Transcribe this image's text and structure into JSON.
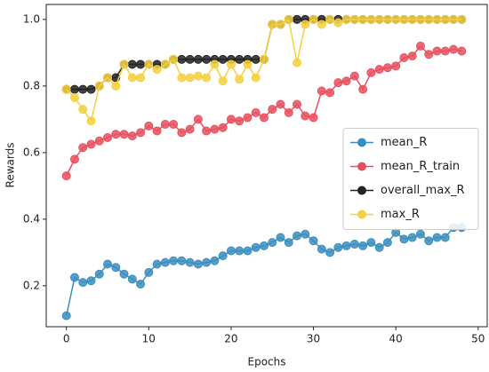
{
  "chart_data": {
    "type": "line",
    "x_label": "Epochs",
    "y_label": "Rewards",
    "x": [
      0,
      1,
      2,
      3,
      4,
      5,
      6,
      7,
      8,
      9,
      10,
      11,
      12,
      13,
      14,
      15,
      16,
      17,
      18,
      19,
      20,
      21,
      22,
      23,
      24,
      25,
      26,
      27,
      28,
      29,
      30,
      31,
      32,
      33,
      34,
      35,
      36,
      37,
      38,
      39,
      40,
      41,
      42,
      43,
      44,
      45,
      46,
      47,
      48
    ],
    "series": [
      {
        "name": "mean_R",
        "color": "#3a8ebf",
        "values": [
          0.11,
          0.225,
          0.21,
          0.215,
          0.235,
          0.265,
          0.255,
          0.235,
          0.22,
          0.205,
          0.24,
          0.265,
          0.27,
          0.275,
          0.275,
          0.27,
          0.265,
          0.27,
          0.275,
          0.29,
          0.305,
          0.305,
          0.305,
          0.315,
          0.32,
          0.33,
          0.345,
          0.33,
          0.35,
          0.355,
          0.335,
          0.31,
          0.3,
          0.315,
          0.32,
          0.325,
          0.32,
          0.33,
          0.315,
          0.33,
          0.36,
          0.34,
          0.345,
          0.355,
          0.335,
          0.345,
          0.345,
          0.375,
          0.375
        ]
      },
      {
        "name": "mean_R_train",
        "color": "#e8505f",
        "values": [
          0.53,
          0.58,
          0.615,
          0.625,
          0.635,
          0.645,
          0.655,
          0.655,
          0.65,
          0.66,
          0.68,
          0.665,
          0.685,
          0.685,
          0.66,
          0.67,
          0.7,
          0.665,
          0.67,
          0.675,
          0.7,
          0.695,
          0.705,
          0.72,
          0.705,
          0.73,
          0.745,
          0.72,
          0.745,
          0.71,
          0.705,
          0.785,
          0.78,
          0.81,
          0.815,
          0.83,
          0.79,
          0.84,
          0.85,
          0.855,
          0.86,
          0.885,
          0.89,
          0.92,
          0.895,
          0.905,
          0.905,
          0.91,
          0.905
        ]
      },
      {
        "name": "overall_max_R",
        "color": "#222222",
        "values": [
          0.79,
          0.79,
          0.79,
          0.79,
          0.8,
          0.825,
          0.825,
          0.865,
          0.865,
          0.865,
          0.865,
          0.865,
          0.865,
          0.88,
          0.88,
          0.88,
          0.88,
          0.88,
          0.88,
          0.88,
          0.88,
          0.88,
          0.88,
          0.88,
          0.88,
          0.985,
          0.985,
          1.0,
          1.0,
          1.0,
          1.0,
          1.0,
          1.0,
          1.0,
          1.0,
          1.0,
          1.0,
          1.0,
          1.0,
          1.0,
          1.0,
          1.0,
          1.0,
          1.0,
          1.0,
          1.0,
          1.0,
          1.0,
          1.0
        ]
      },
      {
        "name": "max_R",
        "color": "#f5d040",
        "values": [
          0.79,
          0.765,
          0.73,
          0.695,
          0.8,
          0.825,
          0.8,
          0.865,
          0.825,
          0.825,
          0.865,
          0.85,
          0.865,
          0.88,
          0.825,
          0.825,
          0.83,
          0.825,
          0.865,
          0.815,
          0.865,
          0.82,
          0.865,
          0.825,
          0.88,
          0.985,
          0.985,
          1.0,
          0.87,
          0.985,
          1.0,
          0.985,
          1.0,
          0.99,
          1.0,
          1.0,
          1.0,
          1.0,
          1.0,
          1.0,
          1.0,
          1.0,
          1.0,
          1.0,
          1.0,
          1.0,
          1.0,
          1.0,
          1.0
        ]
      }
    ],
    "xlim": [
      -2.45,
      51.1
    ],
    "xticks": [
      0,
      10,
      20,
      30,
      40,
      50
    ],
    "ylim": [
      0.077,
      1.045
    ],
    "yticks": [
      0.2,
      0.4,
      0.6,
      0.8,
      {
        "value": 1,
        "label": "1.0"
      }
    ],
    "grid": false,
    "legend": "center right"
  }
}
